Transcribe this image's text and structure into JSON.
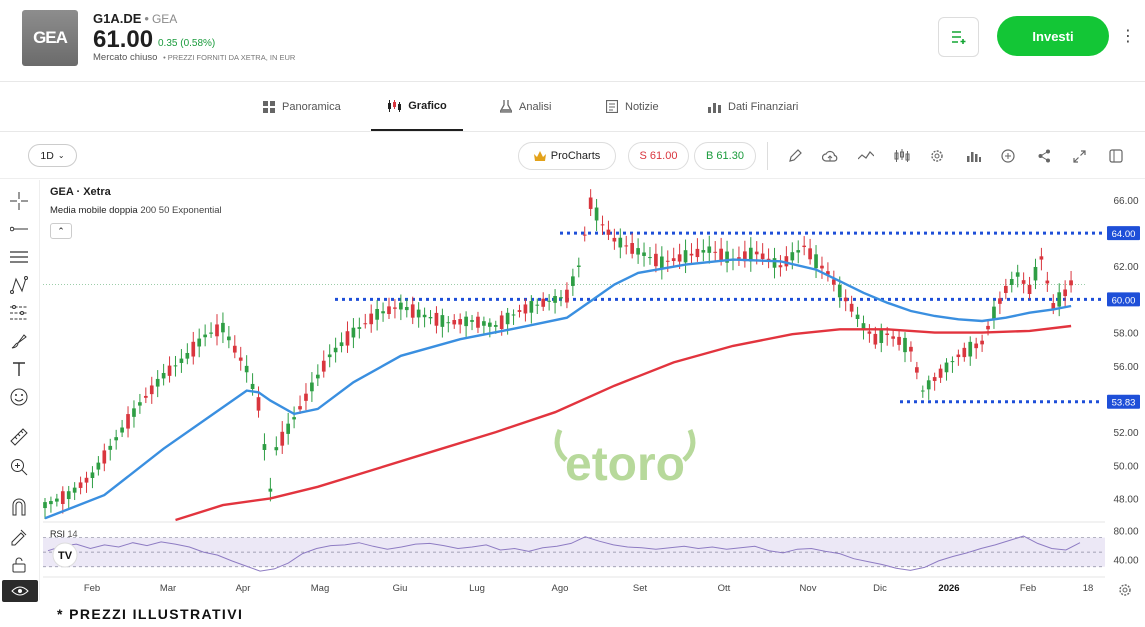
{
  "instrument": {
    "logo_text": "GEA",
    "symbol": "G1A.DE",
    "name": "GEA",
    "price": "61.00",
    "change": "0.35 (0.58%)",
    "market_status": "Mercato chiuso",
    "price_note": "PREZZI FORNITI DA XETRA, IN EUR"
  },
  "actions": {
    "invest_label": "Investi"
  },
  "tabs": [
    {
      "label": "Panoramica",
      "icon": "grid-icon"
    },
    {
      "label": "Grafico",
      "icon": "candles-icon",
      "active": true
    },
    {
      "label": "Analisi",
      "icon": "flask-icon"
    },
    {
      "label": "Notizie",
      "icon": "news-icon"
    },
    {
      "label": "Dati Finanziari",
      "icon": "bar-chart-icon"
    }
  ],
  "toolbar": {
    "timeframe": "1D",
    "procharts": "ProCharts",
    "sell_label": "S 61.00",
    "buy_label": "B 61.30"
  },
  "chart": {
    "title": "GEA · Xetra",
    "indicator_name": "Media mobile doppia",
    "indicator_params": "200 50 Exponential",
    "rsi_label": "RSI",
    "rsi_param": "14",
    "watermark": "etoro",
    "footer": "* PREZZI ILLUSTRATIVI"
  },
  "chart_data": {
    "type": "candlestick",
    "x_ticks": [
      "Feb",
      "Mar",
      "Apr",
      "Mag",
      "Giu",
      "Lug",
      "Ago",
      "Set",
      "Ott",
      "Nov",
      "Dic",
      "2026",
      "Feb",
      "18"
    ],
    "y_ticks": [
      48,
      50,
      52,
      54,
      56,
      58,
      60,
      62,
      64,
      66
    ],
    "ylim": [
      46.7,
      67.2
    ],
    "price_levels": [
      {
        "label": "64.00",
        "value": 64.0,
        "color": "#1e4fd8"
      },
      {
        "label": "60.00",
        "value": 60.0,
        "color": "#1e4fd8"
      },
      {
        "label": "53.83",
        "value": 53.83,
        "color": "#1e4fd8"
      }
    ],
    "series": [
      {
        "name": "Close",
        "points": [
          [
            0,
            47.6
          ],
          [
            4,
            48.2
          ],
          [
            8,
            49.4
          ],
          [
            12,
            51.6
          ],
          [
            16,
            53.7
          ],
          [
            20,
            55.4
          ],
          [
            24,
            56.6
          ],
          [
            27,
            57.8
          ],
          [
            30,
            58.3
          ],
          [
            32,
            57.0
          ],
          [
            34,
            55.8
          ],
          [
            36,
            53.7
          ],
          [
            38,
            48.5
          ],
          [
            39,
            51.0
          ],
          [
            41,
            52.2
          ],
          [
            44,
            54.1
          ],
          [
            48,
            56.6
          ],
          [
            52,
            58.0
          ],
          [
            56,
            59.1
          ],
          [
            60,
            59.6
          ],
          [
            64,
            59.0
          ],
          [
            68,
            58.6
          ],
          [
            72,
            58.7
          ],
          [
            76,
            58.4
          ],
          [
            80,
            59.3
          ],
          [
            84,
            59.8
          ],
          [
            88,
            60.2
          ],
          [
            90,
            62.0
          ],
          [
            92,
            65.8
          ],
          [
            94,
            64.5
          ],
          [
            96,
            63.6
          ],
          [
            100,
            62.9
          ],
          [
            104,
            62.2
          ],
          [
            108,
            62.6
          ],
          [
            112,
            63.0
          ],
          [
            116,
            62.4
          ],
          [
            120,
            62.8
          ],
          [
            124,
            62.0
          ],
          [
            128,
            63.2
          ],
          [
            130,
            62.3
          ],
          [
            132,
            61.6
          ],
          [
            134,
            60.5
          ],
          [
            136,
            59.5
          ],
          [
            138,
            58.4
          ],
          [
            140,
            57.6
          ],
          [
            142,
            57.9
          ],
          [
            144,
            57.5
          ],
          [
            146,
            57.0
          ],
          [
            148,
            54.5
          ],
          [
            150,
            55.2
          ],
          [
            154,
            56.6
          ],
          [
            158,
            57.4
          ],
          [
            160,
            59.2
          ],
          [
            162,
            60.6
          ],
          [
            164,
            61.5
          ],
          [
            166,
            60.6
          ],
          [
            168,
            62.5
          ],
          [
            170,
            59.6
          ],
          [
            172,
            60.4
          ],
          [
            173,
            61.0
          ]
        ]
      },
      {
        "name": "EMA 50",
        "color": "#3a8fe0",
        "points": [
          [
            0,
            46.8
          ],
          [
            10,
            48.2
          ],
          [
            20,
            51.0
          ],
          [
            28,
            53.0
          ],
          [
            34,
            54.5
          ],
          [
            36,
            54.4
          ],
          [
            38,
            53.9
          ],
          [
            42,
            53.1
          ],
          [
            46,
            53.4
          ],
          [
            52,
            55.0
          ],
          [
            60,
            56.6
          ],
          [
            70,
            57.6
          ],
          [
            80,
            58.3
          ],
          [
            88,
            58.9
          ],
          [
            92,
            59.9
          ],
          [
            96,
            60.9
          ],
          [
            100,
            61.6
          ],
          [
            108,
            62.1
          ],
          [
            116,
            62.4
          ],
          [
            124,
            62.3
          ],
          [
            130,
            61.8
          ],
          [
            134,
            61.1
          ],
          [
            138,
            60.4
          ],
          [
            142,
            59.8
          ],
          [
            146,
            59.3
          ],
          [
            150,
            59.0
          ],
          [
            154,
            58.8
          ],
          [
            158,
            58.7
          ],
          [
            162,
            58.9
          ],
          [
            166,
            59.2
          ],
          [
            170,
            59.4
          ],
          [
            173,
            59.6
          ]
        ]
      },
      {
        "name": "EMA 200",
        "color": "#e2343e",
        "points": [
          [
            22,
            46.7
          ],
          [
            30,
            47.6
          ],
          [
            38,
            48.0
          ],
          [
            46,
            48.7
          ],
          [
            56,
            49.8
          ],
          [
            66,
            50.9
          ],
          [
            76,
            52.0
          ],
          [
            86,
            53.2
          ],
          [
            96,
            54.8
          ],
          [
            106,
            56.2
          ],
          [
            116,
            57.2
          ],
          [
            126,
            57.9
          ],
          [
            134,
            58.2
          ],
          [
            142,
            58.2
          ],
          [
            150,
            58.0
          ],
          [
            158,
            58.0
          ],
          [
            166,
            58.1
          ],
          [
            173,
            58.4
          ]
        ]
      }
    ],
    "rsi": {
      "ylim": [
        20,
        90
      ],
      "y_ticks": [
        40,
        80
      ],
      "overbought": 70,
      "oversold": 30,
      "values": [
        52,
        58,
        61,
        55,
        60,
        57,
        63,
        59,
        64,
        61,
        57,
        50,
        46,
        38,
        31,
        24,
        27,
        35,
        48,
        55,
        59,
        60,
        63,
        58,
        54,
        57,
        61,
        62,
        59,
        55,
        57,
        60,
        53,
        55,
        51,
        56,
        58,
        62,
        71,
        65,
        60,
        57,
        56,
        54,
        56,
        58,
        55,
        57,
        54,
        56,
        58,
        52,
        49,
        54,
        55,
        51,
        48,
        41,
        37,
        33,
        28,
        25,
        29,
        38,
        44,
        49,
        55,
        60,
        66,
        72,
        62,
        55,
        53,
        63
      ]
    },
    "xlabel": "",
    "ylabel": "",
    "grid": false
  }
}
